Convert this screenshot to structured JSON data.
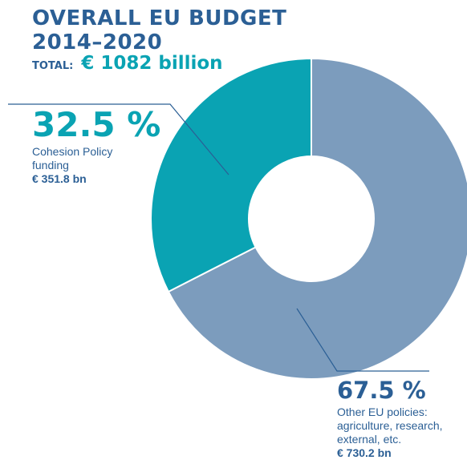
{
  "header": {
    "title_line1": "OVERALL EU BUDGET",
    "title_line2": "2014–2020",
    "total_label": "TOTAL:",
    "total_value": "€ 1082 billion"
  },
  "chart_data": {
    "type": "pie",
    "donut": true,
    "title": "OVERALL EU BUDGET 2014–2020",
    "total": 1082,
    "unit": "€ billion",
    "slices": [
      {
        "percent_label": "67.5 %",
        "value": 730.2,
        "percent": 67.5,
        "color": "#7c9cbd",
        "desc": [
          "Other EU policies:",
          "agriculture, research,",
          "external, etc."
        ],
        "amount": "€ 730.2 bn"
      },
      {
        "percent_label": "32.5 %",
        "value": 351.8,
        "percent": 32.5,
        "color": "#0aa3b3",
        "desc": [
          "Cohesion Policy",
          "funding"
        ],
        "amount": "€ 351.8 bn"
      }
    ]
  },
  "colors": {
    "title": "#2b5f95",
    "accent": "#0aa3b3",
    "other_policies": "#7c9cbd"
  }
}
